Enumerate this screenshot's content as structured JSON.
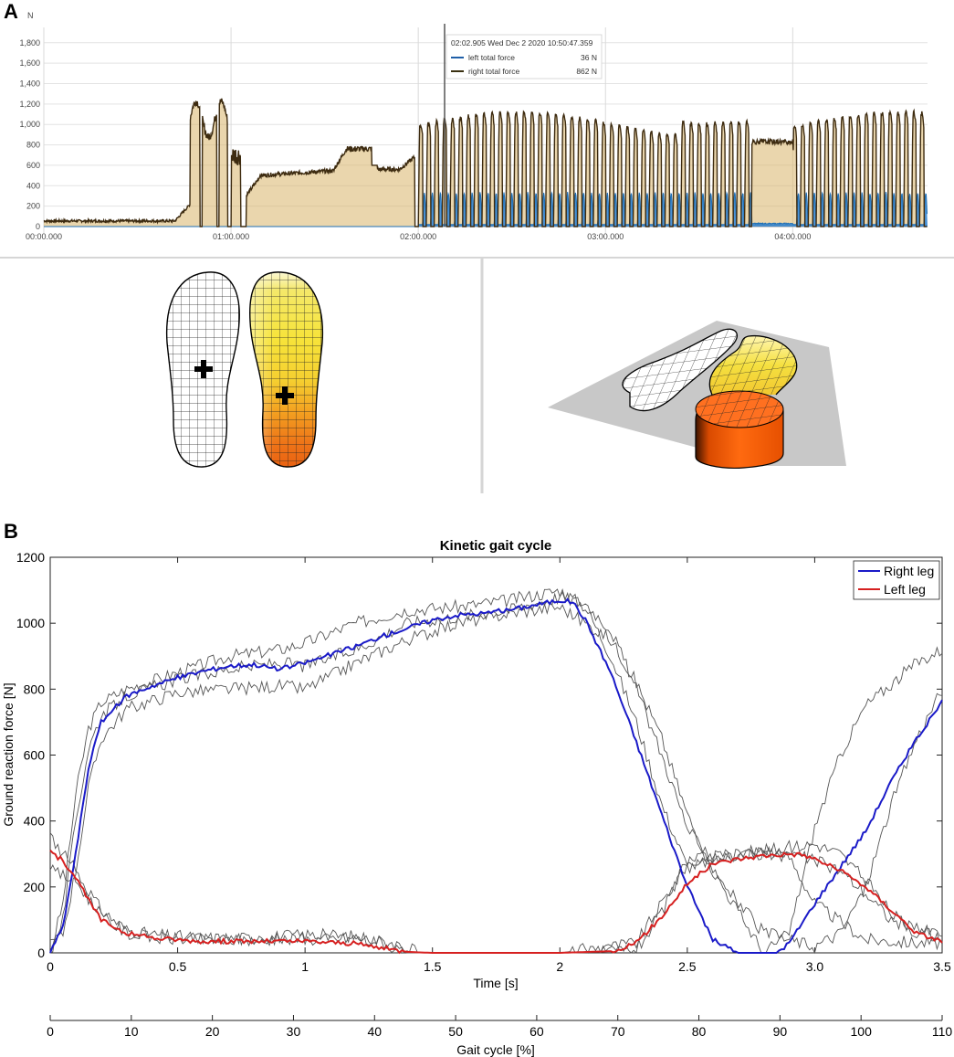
{
  "panel_a": {
    "letter": "A",
    "unit": "N",
    "y_ticks": [
      "0",
      "200",
      "400",
      "600",
      "800",
      "1,000",
      "1,200",
      "1,400",
      "1,600",
      "1,800"
    ],
    "x_ticks": [
      "00:00.000",
      "01:00.000",
      "02:00.000",
      "03:00.000",
      "04:00.000"
    ],
    "tooltip": {
      "header": "02:02.905 Wed Dec 2 2020 10:50:47.359",
      "rows": [
        {
          "label": "left total force",
          "value": "36 N",
          "color": "#1f5fa8"
        },
        {
          "label": "right total force",
          "value": "862 N",
          "color": "#3a3010"
        }
      ]
    },
    "colors": {
      "right": "#3d2b10",
      "right_fill": "#d9b46a",
      "left": "#1f6fb5",
      "left_fill": "#2a7fcf"
    }
  },
  "panel_b": {
    "letter": "B",
    "chart_data": {
      "type": "line",
      "title": "Kinetic gait cycle",
      "xlabel": "Time [s]",
      "ylabel": "Ground reaction force [N]",
      "xlim": [
        0,
        3.5
      ],
      "ylim": [
        0,
        1200
      ],
      "x_ticks": [
        "0",
        "0.5",
        "1",
        "1.5",
        "2",
        "2.5",
        "3.0",
        "3.5"
      ],
      "y_ticks": [
        "0",
        "200",
        "400",
        "600",
        "800",
        "1000",
        "1200"
      ],
      "secondary_x": {
        "label": "Gait cycle [%]",
        "range": [
          0,
          110
        ],
        "ticks": [
          "0",
          "10",
          "20",
          "30",
          "40",
          "50",
          "60",
          "70",
          "80",
          "90",
          "100",
          "110"
        ]
      },
      "legend_position": "top-right",
      "series": [
        {
          "name": "Right leg",
          "color": "#1a1ac8",
          "x": [
            0,
            0.05,
            0.1,
            0.15,
            0.2,
            0.3,
            0.4,
            0.5,
            0.6,
            0.7,
            0.8,
            0.9,
            1.0,
            1.1,
            1.2,
            1.3,
            1.4,
            1.5,
            1.6,
            1.7,
            1.8,
            1.9,
            2.0,
            2.05,
            2.1,
            2.2,
            2.3,
            2.4,
            2.5,
            2.6,
            2.7,
            2.8,
            2.85,
            2.9,
            3.0,
            3.1,
            3.2,
            3.3,
            3.4,
            3.5
          ],
          "values": [
            0,
            80,
            300,
            560,
            700,
            780,
            810,
            835,
            855,
            870,
            875,
            860,
            880,
            905,
            930,
            960,
            985,
            1010,
            1025,
            1030,
            1040,
            1055,
            1070,
            1065,
            1010,
            850,
            640,
            420,
            200,
            40,
            0,
            0,
            0,
            30,
            150,
            260,
            370,
            520,
            650,
            760
          ]
        },
        {
          "name": "Left leg",
          "color": "#d62020",
          "x": [
            0,
            0.05,
            0.1,
            0.15,
            0.2,
            0.3,
            0.4,
            0.6,
            0.8,
            1.0,
            1.1,
            1.2,
            1.3,
            1.4,
            1.5,
            2.0,
            2.2,
            2.3,
            2.4,
            2.5,
            2.6,
            2.7,
            2.8,
            2.9,
            2.95,
            3.0,
            3.1,
            3.2,
            3.3,
            3.4,
            3.5
          ],
          "values": [
            305,
            280,
            230,
            160,
            100,
            60,
            45,
            35,
            35,
            35,
            32,
            28,
            15,
            3,
            0,
            0,
            5,
            30,
            110,
            210,
            270,
            285,
            295,
            300,
            298,
            285,
            250,
            200,
            130,
            60,
            35
          ]
        }
      ],
      "individual_trials": [
        {
          "x": [
            0,
            0.05,
            0.1,
            0.15,
            0.2,
            0.3,
            0.5,
            0.7,
            0.9,
            1.0,
            1.2,
            1.4,
            1.6,
            1.8,
            2.0,
            2.1,
            2.2,
            2.3,
            2.4,
            2.5,
            2.6,
            2.7,
            2.8,
            2.9,
            3.0,
            3.2,
            3.4,
            3.5
          ],
          "values": [
            0,
            150,
            480,
            680,
            760,
            800,
            850,
            900,
            920,
            940,
            1000,
            1040,
            1050,
            1070,
            1100,
            1050,
            900,
            700,
            450,
            260,
            280,
            300,
            310,
            290,
            150,
            40,
            30,
            30
          ]
        },
        {
          "x": [
            0,
            0.05,
            0.1,
            0.15,
            0.2,
            0.3,
            0.5,
            0.7,
            0.9,
            1.0,
            1.2,
            1.4,
            1.6,
            1.8,
            2.0,
            2.1,
            2.2,
            2.3,
            2.4,
            2.5,
            2.6,
            2.8,
            2.9,
            3.0,
            3.1,
            3.2,
            3.4,
            3.5
          ],
          "values": [
            20,
            60,
            250,
            500,
            650,
            740,
            790,
            800,
            810,
            800,
            880,
            950,
            1000,
            1030,
            1050,
            1000,
            950,
            820,
            650,
            420,
            250,
            0,
            60,
            380,
            600,
            750,
            880,
            920
          ]
        },
        {
          "x": [
            0,
            0.05,
            0.1,
            0.15,
            0.2,
            0.3,
            0.5,
            0.7,
            0.9,
            1.0,
            1.2,
            1.4,
            1.6,
            1.8,
            2.0,
            2.1,
            2.2,
            2.3,
            2.4,
            2.5,
            2.6,
            2.7,
            2.8,
            3.0,
            3.1,
            3.2,
            3.3,
            3.4,
            3.5
          ],
          "values": [
            0,
            100,
            400,
            620,
            720,
            780,
            830,
            860,
            880,
            870,
            920,
            1000,
            1020,
            1040,
            1080,
            1060,
            980,
            800,
            600,
            380,
            260,
            150,
            60,
            20,
            60,
            200,
            450,
            650,
            800
          ]
        },
        {
          "x": [
            0,
            0.1,
            0.2,
            0.3,
            0.4,
            0.6,
            0.8,
            1.0,
            1.2,
            1.3,
            1.4,
            2.0,
            2.3,
            2.5,
            2.7,
            2.9,
            3.0,
            3.1,
            3.2,
            3.3,
            3.4,
            3.5
          ],
          "values": [
            350,
            250,
            130,
            70,
            55,
            45,
            45,
            55,
            50,
            35,
            0,
            0,
            30,
            270,
            300,
            320,
            330,
            300,
            220,
            120,
            60,
            50
          ]
        },
        {
          "x": [
            0,
            0.1,
            0.2,
            0.3,
            0.4,
            0.6,
            0.8,
            1.0,
            1.2,
            1.35,
            1.45,
            2.0,
            2.3,
            2.4,
            2.5,
            2.7,
            2.9,
            3.0,
            3.1,
            3.2,
            3.3,
            3.4,
            3.5
          ],
          "values": [
            250,
            220,
            110,
            60,
            45,
            40,
            40,
            40,
            45,
            30,
            0,
            0,
            10,
            120,
            280,
            300,
            300,
            280,
            250,
            180,
            100,
            70,
            60
          ]
        }
      ]
    }
  }
}
